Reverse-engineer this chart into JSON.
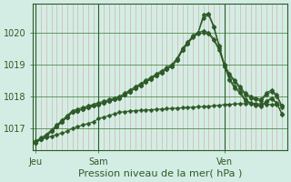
{
  "title": "Pression niveau de la mer( hPa )",
  "bg_color": "#d4ede4",
  "plot_bg_color": "#d4ede4",
  "line_color": "#2d5a27",
  "marker": "D",
  "markersize": 2.5,
  "linewidth": 0.8,
  "xtick_labels": [
    "Jeu",
    "Sam",
    "Ven"
  ],
  "xtick_positions": [
    0,
    12,
    36
  ],
  "ytick_labels": [
    "1017",
    "1018",
    "1019",
    "1020"
  ],
  "ytick_positions": [
    1017,
    1018,
    1019,
    1020
  ],
  "ylim": [
    1016.3,
    1020.9
  ],
  "xlim": [
    -0.5,
    48
  ],
  "vline_positions": [
    0,
    12,
    36
  ],
  "grid_color_h": "#3a7a30",
  "grid_color_v": "#cc7777",
  "series": [
    [
      1016.6,
      1016.65,
      1016.7,
      1016.75,
      1016.8,
      1016.85,
      1016.9,
      1017.0,
      1017.05,
      1017.1,
      1017.15,
      1017.2,
      1017.3,
      1017.35,
      1017.4,
      1017.45,
      1017.5,
      1017.52,
      1017.54,
      1017.55,
      1017.56,
      1017.57,
      1017.58,
      1017.59,
      1017.6,
      1017.61,
      1017.62,
      1017.63,
      1017.64,
      1017.65,
      1017.66,
      1017.67,
      1017.68,
      1017.69,
      1017.7,
      1017.72,
      1017.74,
      1017.75,
      1017.76,
      1017.77,
      1017.77,
      1017.77,
      1017.77,
      1017.76,
      1017.75,
      1017.74,
      1017.73,
      1017.72
    ],
    [
      1016.6,
      1016.7,
      1016.8,
      1016.95,
      1017.1,
      1017.25,
      1017.4,
      1017.55,
      1017.6,
      1017.65,
      1017.7,
      1017.75,
      1017.8,
      1017.85,
      1017.9,
      1017.95,
      1018.0,
      1018.1,
      1018.2,
      1018.3,
      1018.4,
      1018.5,
      1018.6,
      1018.7,
      1018.8,
      1018.9,
      1019.0,
      1019.2,
      1019.5,
      1019.7,
      1019.9,
      1020.0,
      1020.05,
      1020.0,
      1019.8,
      1019.5,
      1019.0,
      1018.7,
      1018.5,
      1018.3,
      1018.1,
      1018.0,
      1017.95,
      1017.9,
      1018.1,
      1018.2,
      1018.05,
      1017.7
    ],
    [
      1016.55,
      1016.65,
      1016.75,
      1016.9,
      1017.05,
      1017.2,
      1017.35,
      1017.5,
      1017.55,
      1017.6,
      1017.65,
      1017.7,
      1017.75,
      1017.8,
      1017.85,
      1017.9,
      1017.95,
      1018.05,
      1018.15,
      1018.25,
      1018.35,
      1018.45,
      1018.55,
      1018.65,
      1018.75,
      1018.85,
      1018.95,
      1019.15,
      1019.45,
      1019.65,
      1019.85,
      1019.95,
      1020.0,
      1019.95,
      1019.75,
      1019.45,
      1018.95,
      1018.65,
      1018.45,
      1018.25,
      1018.05,
      1017.95,
      1017.9,
      1017.85,
      1018.05,
      1018.15,
      1018.0,
      1017.65
    ],
    [
      1016.55,
      1016.65,
      1016.75,
      1016.9,
      1017.05,
      1017.2,
      1017.35,
      1017.5,
      1017.55,
      1017.6,
      1017.65,
      1017.7,
      1017.75,
      1017.8,
      1017.85,
      1017.9,
      1017.95,
      1018.05,
      1018.15,
      1018.25,
      1018.35,
      1018.45,
      1018.55,
      1018.65,
      1018.75,
      1018.85,
      1018.95,
      1019.15,
      1019.45,
      1019.65,
      1019.88,
      1020.0,
      1020.55,
      1020.6,
      1020.2,
      1019.6,
      1019.0,
      1018.55,
      1018.3,
      1018.15,
      1017.9,
      1017.8,
      1017.75,
      1017.7,
      1017.85,
      1017.95,
      1017.8,
      1017.45
    ],
    [
      1016.55,
      1016.65,
      1016.75,
      1016.9,
      1017.05,
      1017.2,
      1017.35,
      1017.5,
      1017.55,
      1017.6,
      1017.65,
      1017.7,
      1017.75,
      1017.8,
      1017.85,
      1017.9,
      1017.95,
      1018.05,
      1018.15,
      1018.25,
      1018.35,
      1018.45,
      1018.55,
      1018.65,
      1018.75,
      1018.85,
      1018.95,
      1019.15,
      1019.45,
      1019.65,
      1019.88,
      1020.0,
      1020.45,
      1020.55,
      1020.15,
      1019.55,
      1018.95,
      1018.5,
      1018.25,
      1018.1,
      1017.85,
      1017.78,
      1017.72,
      1017.68,
      1017.82,
      1017.92,
      1017.78,
      1017.43
    ]
  ]
}
